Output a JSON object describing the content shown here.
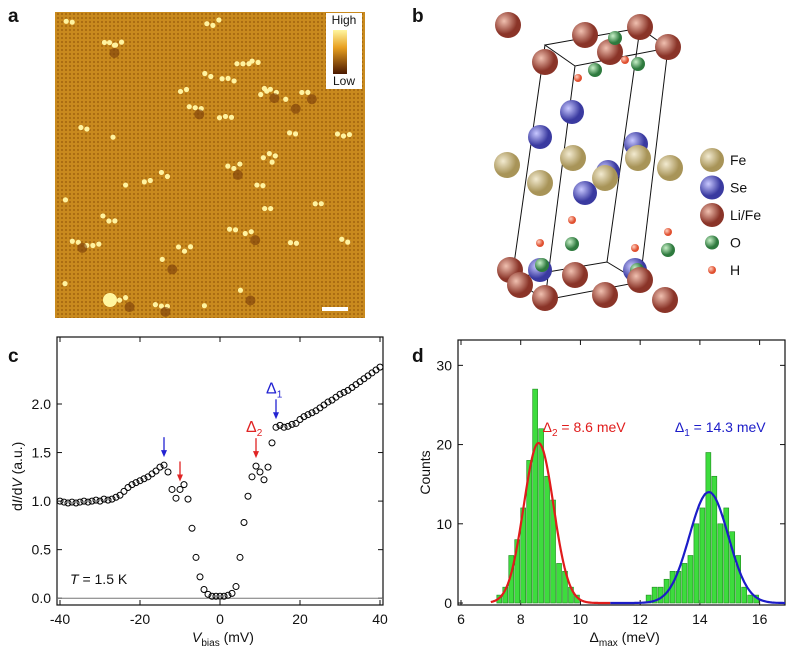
{
  "panels": {
    "a": "a",
    "b": "b",
    "c": "c",
    "d": "d"
  },
  "image": {
    "colorbar_high": "High",
    "colorbar_low": "Low"
  },
  "structure": {
    "legend": [
      {
        "label": "Fe"
      },
      {
        "label": "Se"
      },
      {
        "label": "Li/Fe"
      },
      {
        "label": "O"
      },
      {
        "label": "H"
      }
    ]
  },
  "chart_data": [
    {
      "type": "scatter",
      "x_label": [
        "V",
        "bias",
        " (mV)"
      ],
      "y_label": [
        "d",
        "I",
        "/d",
        "V",
        " (a.u.)"
      ],
      "annotation": [
        "T",
        " = 1.5 K"
      ],
      "xlim": [
        -40.75,
        40.75
      ],
      "ylim": [
        -0.07,
        2.69
      ],
      "xticks": [
        -40,
        -20,
        0,
        20,
        40
      ],
      "yticks": [
        {
          "value": 0,
          "label": "0.0"
        },
        0.5,
        {
          "value": 1,
          "label": "1.0"
        },
        1.5,
        {
          "value": 2,
          "label": "2.0"
        }
      ],
      "marker_color": "#000000",
      "x": [
        -40,
        -39,
        -38,
        -37,
        -36,
        -35,
        -34,
        -33,
        -32,
        -31,
        -30,
        -29,
        -28,
        -27,
        -26,
        -25,
        -24,
        -23,
        -22,
        -21,
        -20,
        -19,
        -18,
        -17,
        -16,
        -15,
        -14,
        -13,
        -12,
        -11,
        -10,
        -9,
        -8,
        -7,
        -6,
        -5,
        -4,
        -3,
        -2,
        -1,
        0,
        1,
        2,
        3,
        4,
        5,
        6,
        7,
        8,
        9,
        10,
        11,
        12,
        13,
        14,
        15,
        16,
        17,
        18,
        19,
        20,
        21,
        22,
        23,
        24,
        25,
        26,
        27,
        28,
        29,
        30,
        31,
        32,
        33,
        34,
        35,
        36,
        37,
        38,
        39,
        40
      ],
      "values": [
        1.0,
        0.99,
        0.98,
        0.99,
        0.98,
        0.99,
        1.0,
        0.99,
        1.0,
        1.01,
        1.0,
        1.02,
        1.01,
        1.02,
        1.04,
        1.06,
        1.1,
        1.14,
        1.17,
        1.19,
        1.21,
        1.23,
        1.25,
        1.28,
        1.31,
        1.35,
        1.37,
        1.3,
        1.12,
        1.03,
        1.12,
        1.17,
        1.02,
        0.72,
        0.42,
        0.22,
        0.09,
        0.04,
        0.02,
        0.02,
        0.02,
        0.02,
        0.03,
        0.05,
        0.12,
        0.42,
        0.78,
        1.05,
        1.25,
        1.36,
        1.3,
        1.22,
        1.35,
        1.6,
        1.76,
        1.78,
        1.76,
        1.77,
        1.79,
        1.8,
        1.84,
        1.87,
        1.89,
        1.91,
        1.93,
        1.96,
        1.99,
        2.02,
        2.04,
        2.07,
        2.1,
        2.12,
        2.14,
        2.17,
        2.2,
        2.23,
        2.26,
        2.29,
        2.32,
        2.35,
        2.38
      ],
      "arrows": [
        {
          "x": -14,
          "color": "#2323d2"
        },
        {
          "x": -10,
          "color": "#e02424"
        },
        {
          "x": 9,
          "color": "#e02424",
          "label": [
            "Δ",
            "2"
          ]
        },
        {
          "x": 14,
          "color": "#2323d2",
          "label": [
            "Δ",
            "1"
          ]
        }
      ]
    },
    {
      "type": "histogram",
      "x_label": [
        "Δ",
        "max",
        " (meV)"
      ],
      "y_label": "Counts",
      "xlim": [
        5.9,
        16.85
      ],
      "ylim": [
        -0.25,
        33.2
      ],
      "xticks": [
        6,
        8,
        10,
        12,
        14,
        16
      ],
      "yticks": [
        0,
        10,
        20,
        30
      ],
      "color": "#3ddc3d",
      "bins": [
        7.0,
        7.2,
        7.4,
        7.6,
        7.8,
        8.0,
        8.2,
        8.4,
        8.6,
        8.8,
        9.0,
        9.2,
        9.4,
        9.6,
        9.8,
        10.0,
        10.2,
        10.4,
        10.6,
        10.8,
        11.0,
        11.2,
        11.4,
        11.6,
        11.8,
        12.0,
        12.2,
        12.4,
        12.6,
        12.8,
        13.0,
        13.2,
        13.4,
        13.6,
        13.8,
        14.0,
        14.2,
        14.4,
        14.6,
        14.8,
        15.0,
        15.2,
        15.4,
        15.6,
        15.8,
        16.0
      ],
      "counts": [
        0,
        1,
        2,
        6,
        8,
        12,
        18,
        27,
        22,
        16,
        13,
        5,
        4,
        2,
        1,
        0,
        0,
        0,
        0,
        0,
        0,
        0,
        0,
        0,
        0,
        0,
        1,
        2,
        2,
        3,
        4,
        4,
        5,
        6,
        10,
        12,
        19,
        16,
        10,
        12,
        9,
        6,
        2,
        1,
        1
      ],
      "fits": [
        {
          "label": [
            "Δ",
            "2",
            " = 8.6 meV"
          ],
          "center": 8.6,
          "amplitude": 20.2,
          "sigma": 0.5,
          "range": [
            7.0,
            11.0
          ],
          "color": "#e01c1c"
        },
        {
          "label": [
            "Δ",
            "1",
            " = 14.3 meV"
          ],
          "center": 14.3,
          "amplitude": 14.0,
          "sigma": 0.65,
          "range": [
            11.0,
            16.85
          ],
          "color": "#1c1cc8"
        }
      ]
    }
  ]
}
